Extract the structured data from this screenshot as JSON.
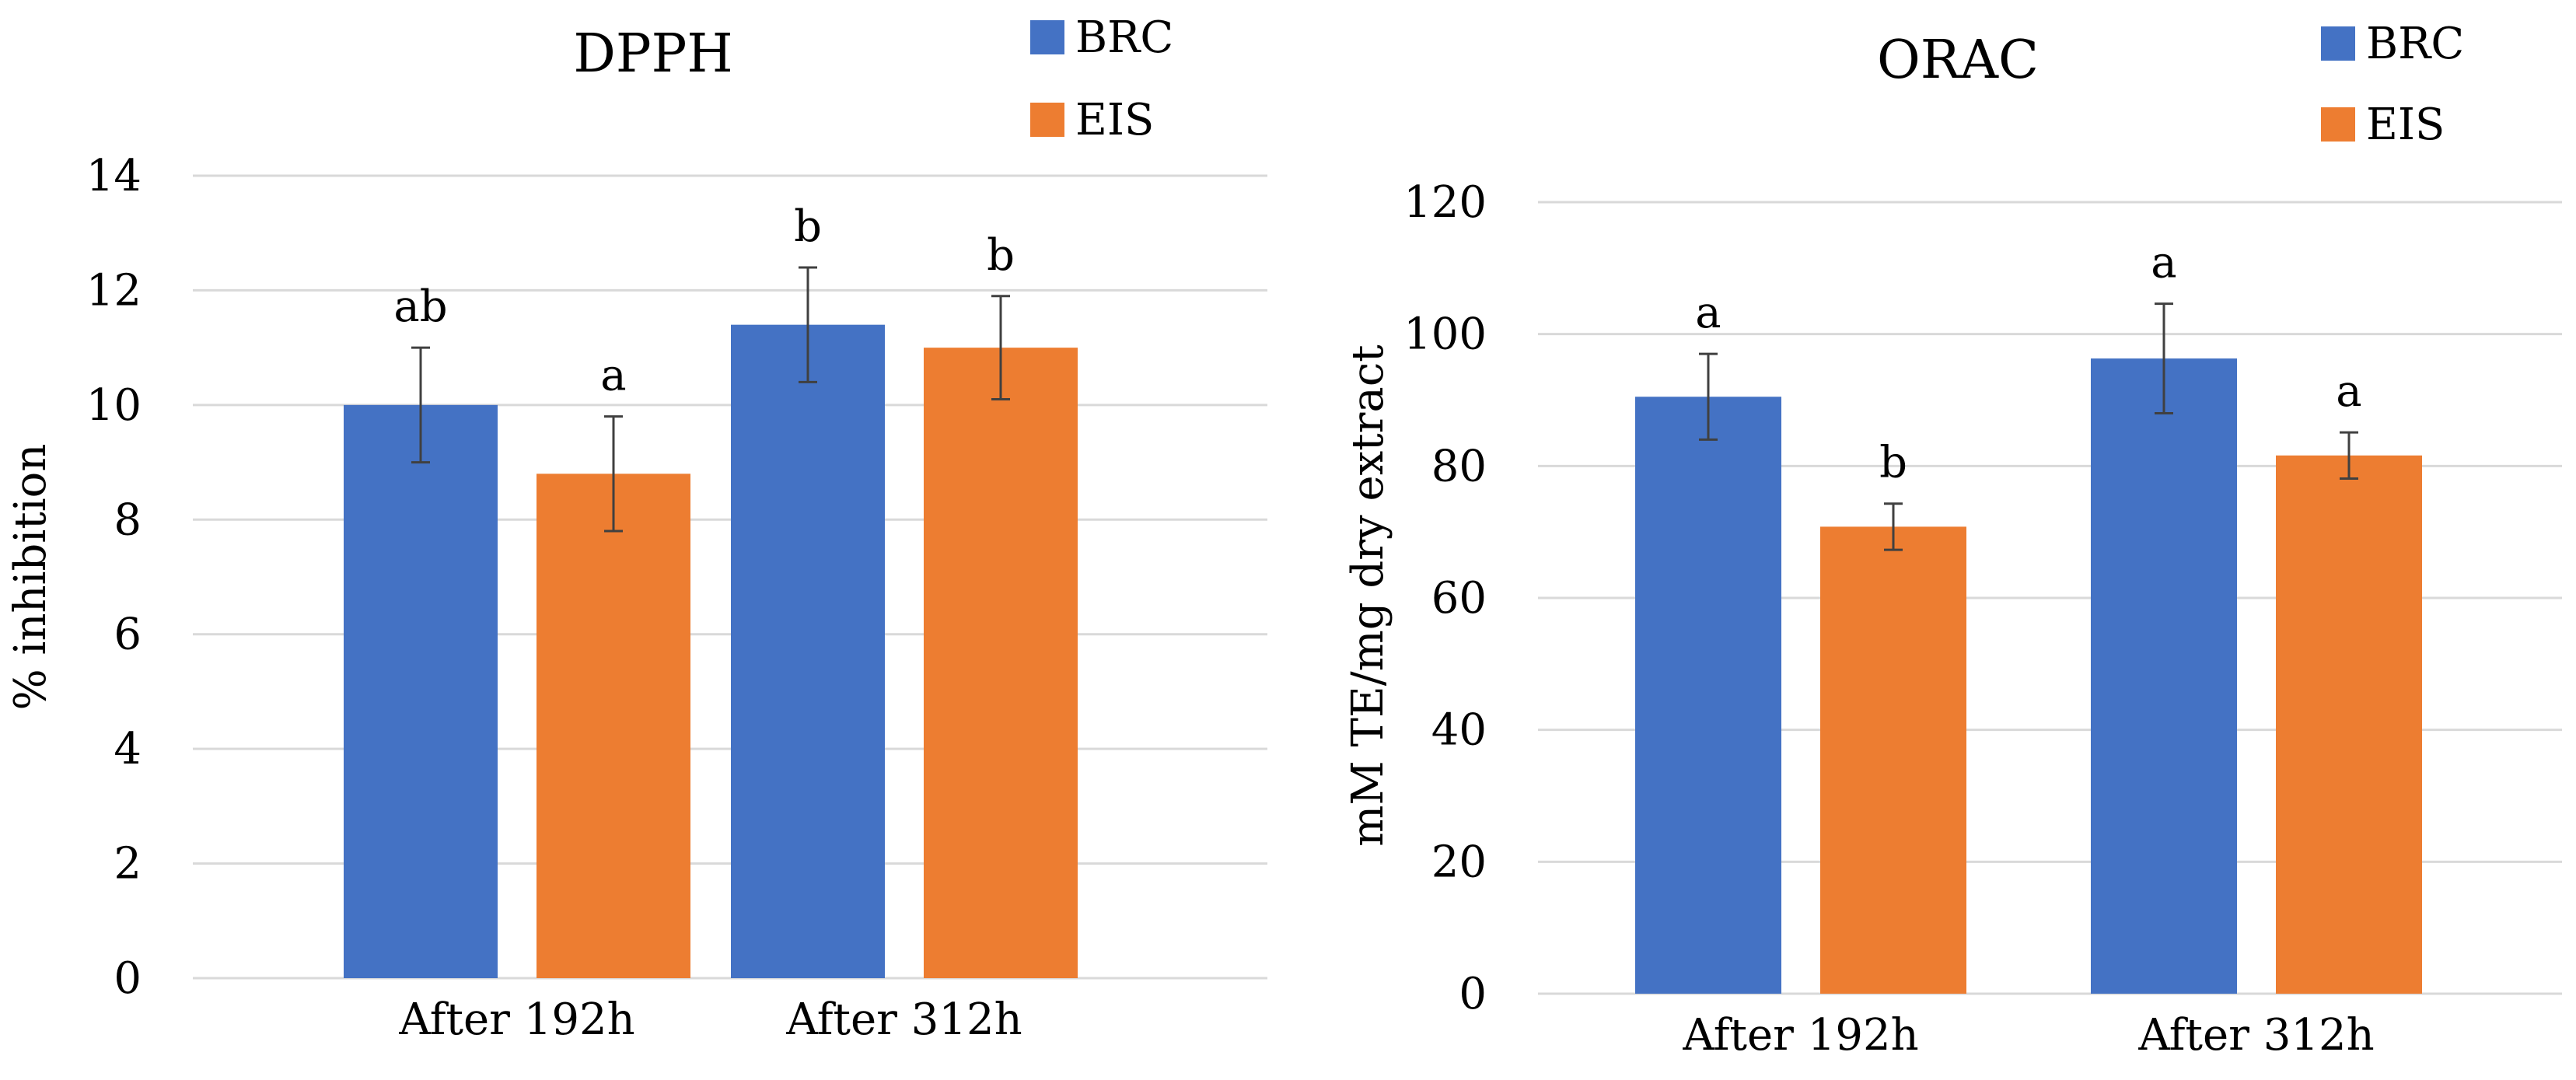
{
  "chart_data": [
    {
      "type": "bar",
      "title": "DPPH",
      "xlabel": "",
      "ylabel": "% inhibition",
      "ylim": [
        0,
        14
      ],
      "ytick_values": [
        0,
        2,
        4,
        6,
        8,
        10,
        12,
        14
      ],
      "ytick_labels": [
        "0",
        "2",
        "4",
        "6",
        "8",
        "10",
        "12",
        "14"
      ],
      "grid": true,
      "legend_position": "top-right",
      "categories": [
        "After 192h",
        "After 312h"
      ],
      "series": [
        {
          "name": "BRC",
          "color": "#4472c4",
          "values": [
            10.0,
            11.4
          ],
          "errors": [
            1.0,
            1.0
          ],
          "labels": [
            "ab",
            "b"
          ]
        },
        {
          "name": "EIS",
          "color": "#ed7d31",
          "values": [
            8.8,
            11.0
          ],
          "errors": [
            1.0,
            0.9
          ],
          "labels": [
            "a",
            "b"
          ]
        }
      ]
    },
    {
      "type": "bar",
      "title": "ORAC",
      "xlabel": "",
      "ylabel": "mM TE/mg dry extract",
      "ylim": [
        0,
        120
      ],
      "ytick_values": [
        0,
        20,
        40,
        60,
        80,
        100,
        120
      ],
      "ytick_labels": [
        "0",
        "20",
        "40",
        "60",
        "80",
        "100",
        "120"
      ],
      "grid": true,
      "legend_position": "top-right",
      "categories": [
        "After 192h",
        "After 312h"
      ],
      "series": [
        {
          "name": "BRC",
          "color": "#4472c4",
          "values": [
            90.5,
            96.3
          ],
          "errors": [
            6.5,
            8.3
          ],
          "labels": [
            "a",
            "a"
          ]
        },
        {
          "name": "EIS",
          "color": "#ed7d31",
          "values": [
            70.8,
            81.6
          ],
          "errors": [
            3.5,
            3.5
          ],
          "labels": [
            "b",
            "a"
          ]
        }
      ]
    }
  ]
}
